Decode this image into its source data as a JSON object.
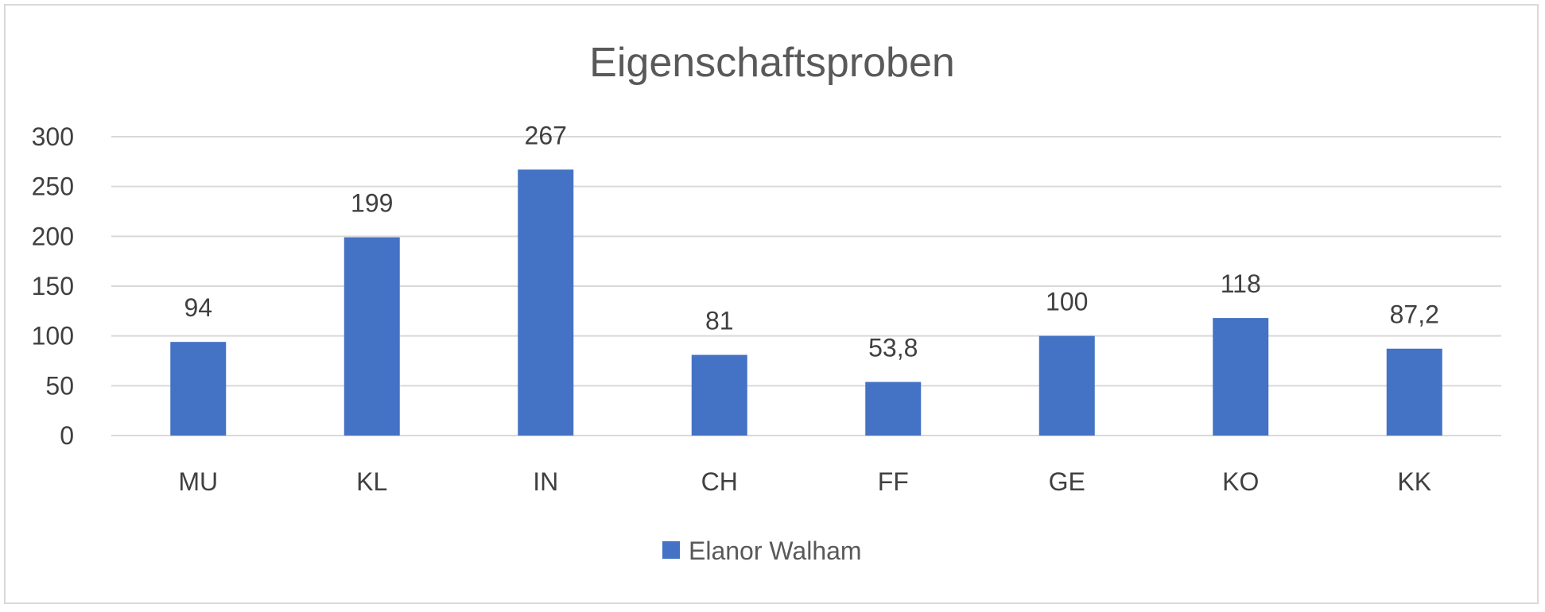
{
  "chart_data": {
    "type": "bar",
    "title": "Eigenschaftsproben",
    "categories": [
      "MU",
      "KL",
      "IN",
      "CH",
      "FF",
      "GE",
      "KO",
      "KK"
    ],
    "series": [
      {
        "name": "Elanor Walham",
        "values": [
          94,
          199,
          267,
          81,
          53.8,
          100,
          118,
          87.2
        ],
        "labels": [
          "94",
          "199",
          "267",
          "81",
          "53,8",
          "100",
          "118",
          "87,2"
        ],
        "color": "#4472c4"
      }
    ],
    "ylim": [
      0,
      300
    ],
    "yticks": [
      0,
      50,
      100,
      150,
      200,
      250,
      300
    ],
    "grid": true,
    "legend_position": "bottom"
  }
}
